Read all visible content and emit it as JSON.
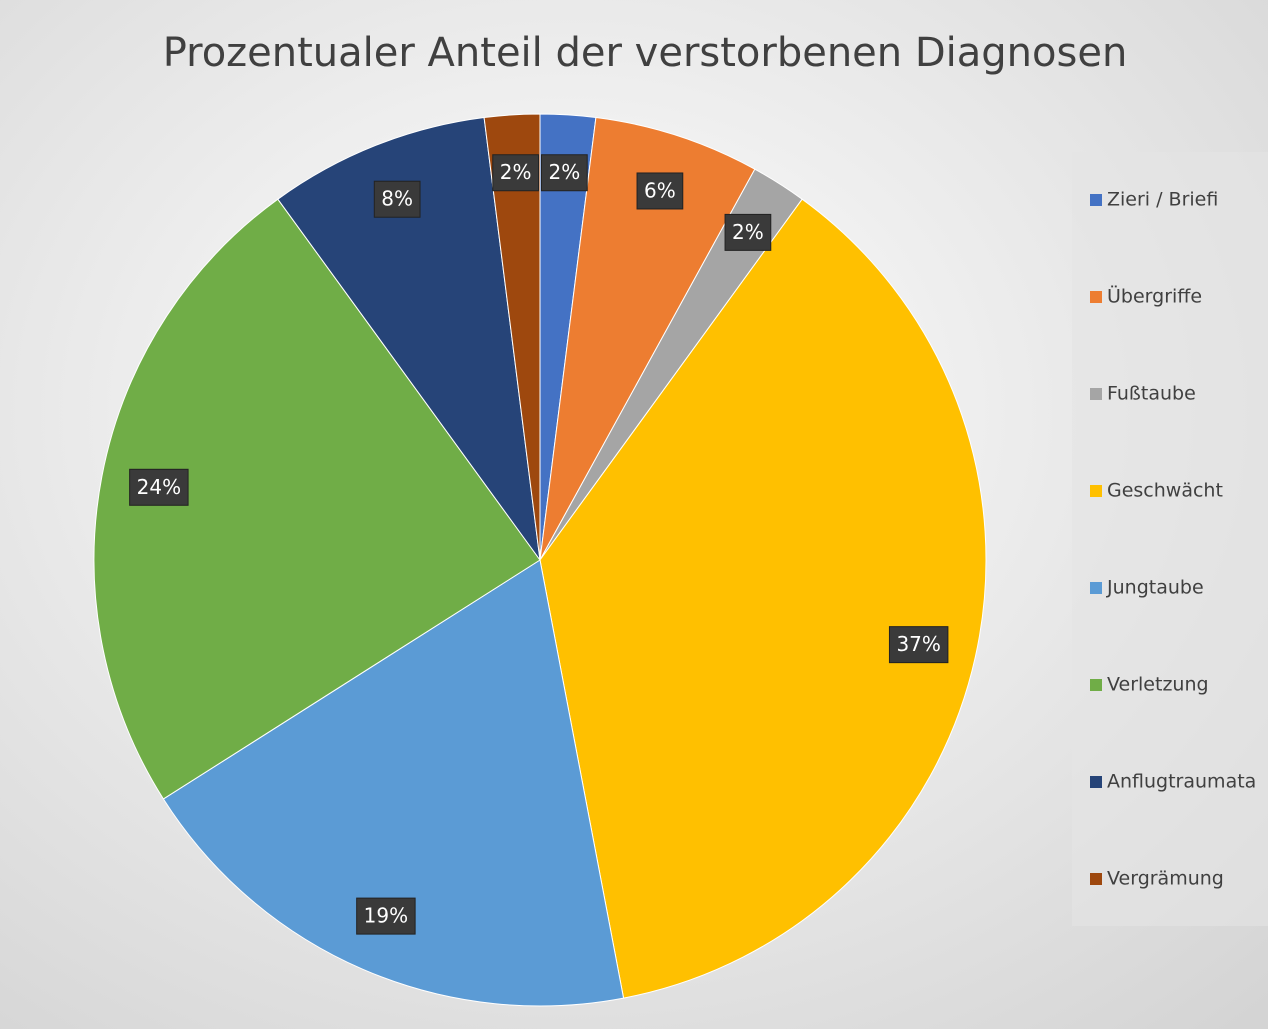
{
  "chart_data": {
    "type": "pie",
    "title": "Prozentualer Anteil der verstorbenen Diagnosen",
    "categories": [
      "Zieri / Briefi",
      "Übergriffe",
      "Fußtaube",
      "Geschwächt",
      "Jungtaube",
      "Verletzung",
      "Anflugtraumata",
      "Vergrämung"
    ],
    "values": [
      2,
      6,
      2,
      37,
      19,
      24,
      8,
      2
    ],
    "value_labels": [
      "2%",
      "6%",
      "2%",
      "37%",
      "19%",
      "24%",
      "8%",
      "2%"
    ],
    "colors": [
      "#4472c4",
      "#ed7d31",
      "#a5a5a5",
      "#ffc000",
      "#5b9bd5",
      "#70ad47",
      "#264478",
      "#9e480e"
    ],
    "legend": "right"
  }
}
